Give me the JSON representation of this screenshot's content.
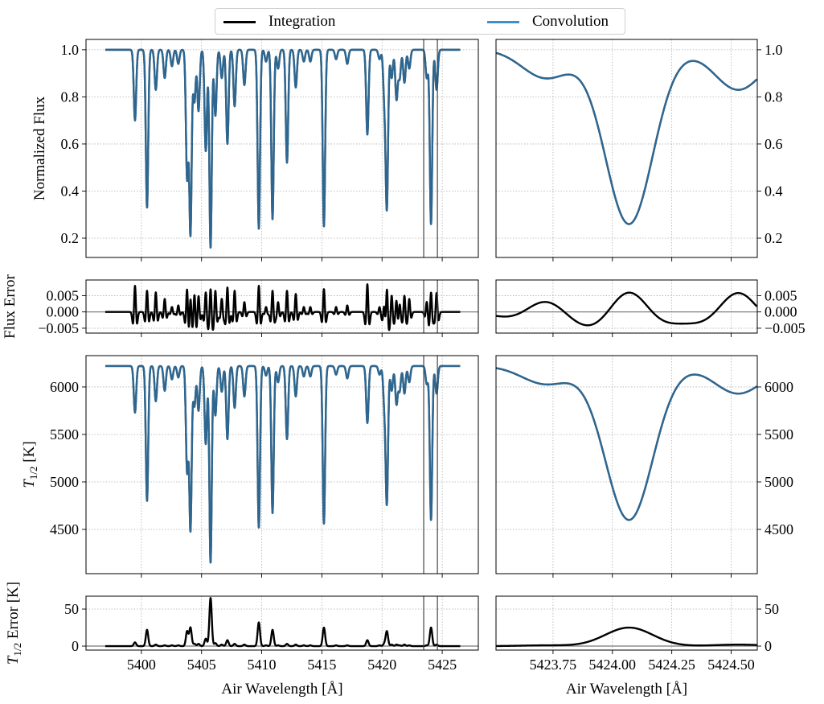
{
  "legend": {
    "integration": {
      "label": "Integration",
      "color": "#000000"
    },
    "convolution": {
      "label": "Convolution",
      "color": "#3f8fc9"
    }
  },
  "chart_data": {
    "type": "line",
    "xlabel": "Air Wavelength [Å]",
    "series_names": [
      "Integration",
      "Convolution"
    ],
    "grid": true,
    "legend_position": "top-center",
    "spectrum_range": [
      5397.0,
      5426.5
    ],
    "zoom_window": [
      5423.46,
      5424.6
    ],
    "left_xlim": [
      5395.4,
      5428.0
    ],
    "left_xticks": [
      5400,
      5405,
      5410,
      5415,
      5420,
      5425
    ],
    "right_xlim": [
      5423.51,
      5424.61
    ],
    "right_xticks": [
      "5423.75",
      "5424.00",
      "5424.25",
      "5424.50"
    ],
    "rows": [
      {
        "key": "flux",
        "ylabel": "Normalized Flux",
        "ylabel_sub": "",
        "ylabel_rest": "",
        "ylim": [
          0.118,
          1.044
        ],
        "yticks": [
          "0.2",
          "0.4",
          "0.6",
          "0.8",
          "1.0"
        ],
        "zero_line": false
      },
      {
        "key": "flux_err",
        "ylabel": "Flux Error",
        "ylabel_sub": "",
        "ylabel_rest": "",
        "ylim": [
          -0.0065,
          0.0098
        ],
        "yticks": [
          "−0.005",
          "0.000",
          "0.005"
        ],
        "zero_line": true
      },
      {
        "key": "temp",
        "ylabel": "T",
        "ylabel_sub": "1/2",
        "ylabel_rest": " [K]",
        "ylim": [
          4034,
          6330
        ],
        "yticks": [
          "4500",
          "5000",
          "5500",
          "6000"
        ],
        "zero_line": false
      },
      {
        "key": "temp_err",
        "ylabel": "T",
        "ylabel_sub": "1/2",
        "ylabel_rest": " Error [K]",
        "ylim": [
          -5.4,
          67.4
        ],
        "yticks": [
          "0",
          "50"
        ],
        "zero_line": true
      }
    ],
    "continuum": {
      "flux": 1.0,
      "temp": 6220
    },
    "line_columns": [
      "center",
      "flux_min",
      "temp_min",
      "flux_err_peak",
      "temp_err_peak"
    ],
    "lines": [
      [
        5399.47,
        0.7,
        5730,
        0.008,
        5
      ],
      [
        5400.47,
        0.33,
        4800,
        0.0065,
        22
      ],
      [
        5401.2,
        0.83,
        5850,
        0.006,
        2
      ],
      [
        5401.94,
        0.88,
        5960,
        0.004,
        1
      ],
      [
        5402.54,
        0.93,
        6080,
        0.0015,
        1
      ],
      [
        5403.07,
        0.94,
        6100,
        0.002,
        1
      ],
      [
        5403.8,
        0.46,
        5120,
        0.0075,
        20
      ],
      [
        5404.08,
        0.22,
        4500,
        0.005,
        25
      ],
      [
        5404.41,
        0.78,
        5800,
        0.0055,
        3
      ],
      [
        5404.75,
        0.74,
        5750,
        0.005,
        3
      ],
      [
        5405.35,
        0.57,
        5400,
        0.006,
        10
      ],
      [
        5405.75,
        0.16,
        4150,
        0.007,
        65
      ],
      [
        5406.15,
        0.72,
        5700,
        0.0065,
        4
      ],
      [
        5406.68,
        0.88,
        5950,
        0.004,
        2
      ],
      [
        5407.15,
        0.6,
        5450,
        0.0075,
        8
      ],
      [
        5407.75,
        0.76,
        5780,
        0.0065,
        3
      ],
      [
        5408.56,
        0.85,
        5900,
        0.003,
        2
      ],
      [
        5409.76,
        0.24,
        4520,
        0.008,
        32
      ],
      [
        5410.36,
        0.95,
        6120,
        0.0015,
        1
      ],
      [
        5410.9,
        0.28,
        4670,
        0.0065,
        22
      ],
      [
        5411.36,
        0.92,
        6050,
        0.003,
        1
      ],
      [
        5412.1,
        0.52,
        5450,
        0.0065,
        3
      ],
      [
        5412.83,
        0.84,
        5900,
        0.0055,
        2
      ],
      [
        5413.5,
        0.95,
        6110,
        0.0015,
        1
      ],
      [
        5414.04,
        0.95,
        6110,
        0.0015,
        1
      ],
      [
        5415.17,
        0.25,
        4560,
        0.007,
        25
      ],
      [
        5416.18,
        0.96,
        6130,
        0.0015,
        1
      ],
      [
        5417.11,
        0.94,
        6090,
        0.002,
        1
      ],
      [
        5418.78,
        0.64,
        5620,
        0.0085,
        8
      ],
      [
        5419.79,
        0.96,
        6130,
        0.0015,
        1
      ],
      [
        5420.19,
        0.81,
        5850,
        0.0045,
        3
      ],
      [
        5420.4,
        0.34,
        4800,
        0.0085,
        20
      ],
      [
        5420.8,
        0.88,
        5960,
        0.005,
        2
      ],
      [
        5421.2,
        0.79,
        5820,
        0.004,
        2
      ],
      [
        5421.46,
        0.88,
        5960,
        0.003,
        1
      ],
      [
        5421.86,
        0.86,
        5930,
        0.005,
        2
      ],
      [
        5422.26,
        0.92,
        6050,
        0.004,
        1
      ],
      [
        5423.72,
        0.88,
        6030,
        0.0032,
        1
      ],
      [
        5424.07,
        0.26,
        4600,
        0.006,
        25
      ],
      [
        5424.53,
        0.83,
        5930,
        0.0058,
        2
      ]
    ]
  }
}
